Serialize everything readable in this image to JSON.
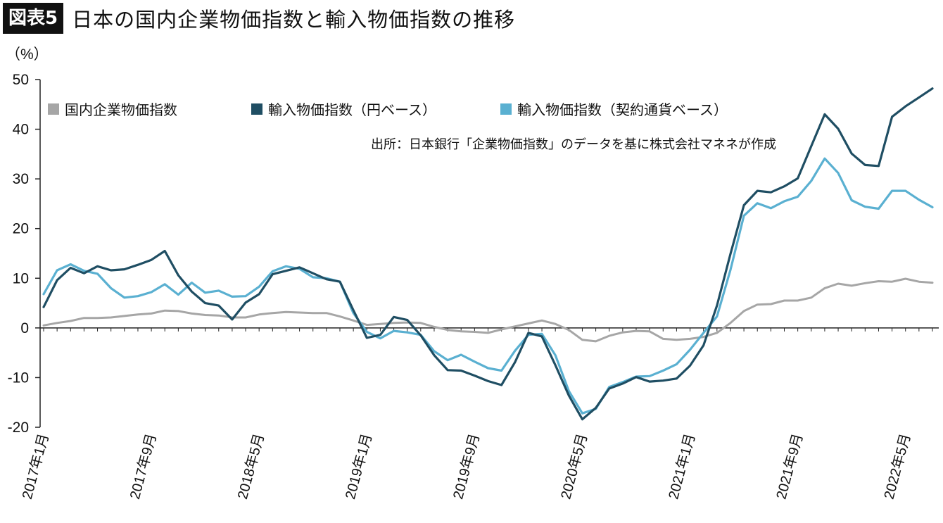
{
  "header": {
    "badge": "図表5",
    "title": "日本の国内企業物価指数と輸入物価指数の推移"
  },
  "chart_data": {
    "type": "line",
    "unit_label": "（%）",
    "source_note": "出所：日本銀行「企業物価指数」のデータを基に株式会社マネネが作成",
    "ylim": [
      -20,
      50
    ],
    "yticks": [
      "50",
      "40",
      "30",
      "20",
      "10",
      "0",
      "-10",
      "-20"
    ],
    "x_tick_labels": [
      "2017年1月",
      "2017年9月",
      "2018年5月",
      "2019年1月",
      "2019年9月",
      "2020年5月",
      "2021年1月",
      "2021年9月",
      "2022年5月"
    ],
    "x_tick_index": [
      0,
      8,
      16,
      24,
      32,
      40,
      48,
      56,
      64
    ],
    "x_count": 67,
    "grid": false,
    "legend_position": "top-left",
    "series": [
      {
        "name": "国内企業物価指数",
        "color": "#a6a6a6",
        "values": [
          0.5,
          1.0,
          1.4,
          2.0,
          2.0,
          2.1,
          2.4,
          2.7,
          2.9,
          3.5,
          3.4,
          2.9,
          2.6,
          2.5,
          2.1,
          2.1,
          2.7,
          3.0,
          3.2,
          3.1,
          3.0,
          3.0,
          2.3,
          1.5,
          0.6,
          0.8,
          1.0,
          1.1,
          1.0,
          0.2,
          -0.4,
          -0.7,
          -0.8,
          -1.0,
          -0.3,
          0.3,
          0.9,
          1.5,
          0.8,
          -0.4,
          -2.4,
          -2.7,
          -1.6,
          -0.9,
          -0.6,
          -0.7,
          -2.2,
          -2.4,
          -2.2,
          -1.8,
          -1.0,
          1.0,
          3.4,
          4.7,
          4.8,
          5.5,
          5.5,
          6.1,
          8.0,
          8.9,
          8.5,
          9.0,
          9.4,
          9.3,
          9.9,
          9.3,
          9.1
        ]
      },
      {
        "name": "輸入物価指数（円ベース）",
        "color": "#1f4e63",
        "values": [
          4.2,
          9.6,
          12.1,
          11.0,
          12.4,
          11.6,
          11.8,
          12.7,
          13.7,
          15.5,
          10.6,
          7.3,
          5.0,
          4.5,
          1.7,
          5.1,
          6.8,
          10.8,
          11.5,
          12.2,
          11.0,
          9.8,
          9.3,
          3.6,
          -2.0,
          -1.4,
          2.2,
          1.6,
          -1.5,
          -5.5,
          -8.5,
          -8.6,
          -9.6,
          -10.7,
          -11.5,
          -6.9,
          -1.0,
          -1.7,
          -7.5,
          -13.6,
          -18.4,
          -16.1,
          -12.2,
          -11.2,
          -9.9,
          -10.8,
          -10.6,
          -10.2,
          -7.6,
          -3.5,
          4.5,
          14.9,
          24.7,
          27.6,
          27.3,
          28.5,
          30.1,
          36.6,
          43.0,
          40.1,
          35.1,
          32.8,
          32.6,
          42.5,
          44.6,
          46.4,
          48.2
        ]
      },
      {
        "name": "輸入物価指数（契約通貨ベース）",
        "color": "#5ab0d1",
        "values": [
          6.8,
          11.6,
          12.8,
          11.5,
          10.9,
          8.0,
          6.1,
          6.4,
          7.2,
          8.8,
          6.7,
          9.1,
          7.1,
          7.5,
          6.3,
          6.4,
          8.3,
          11.4,
          12.4,
          11.9,
          10.2,
          10.0,
          9.3,
          3.0,
          -0.8,
          -2.1,
          -0.6,
          -0.9,
          -1.4,
          -4.7,
          -6.5,
          -5.4,
          -6.8,
          -8.1,
          -8.6,
          -4.6,
          -1.4,
          -1.2,
          -5.5,
          -12.7,
          -17.2,
          -16.3,
          -11.9,
          -10.9,
          -9.8,
          -9.7,
          -8.6,
          -7.3,
          -4.4,
          -1.0,
          2.3,
          11.7,
          22.6,
          25.1,
          24.1,
          25.5,
          26.4,
          29.6,
          34.1,
          31.2,
          25.7,
          24.4,
          24.0,
          27.6,
          27.6,
          25.8,
          24.3
        ]
      }
    ]
  }
}
